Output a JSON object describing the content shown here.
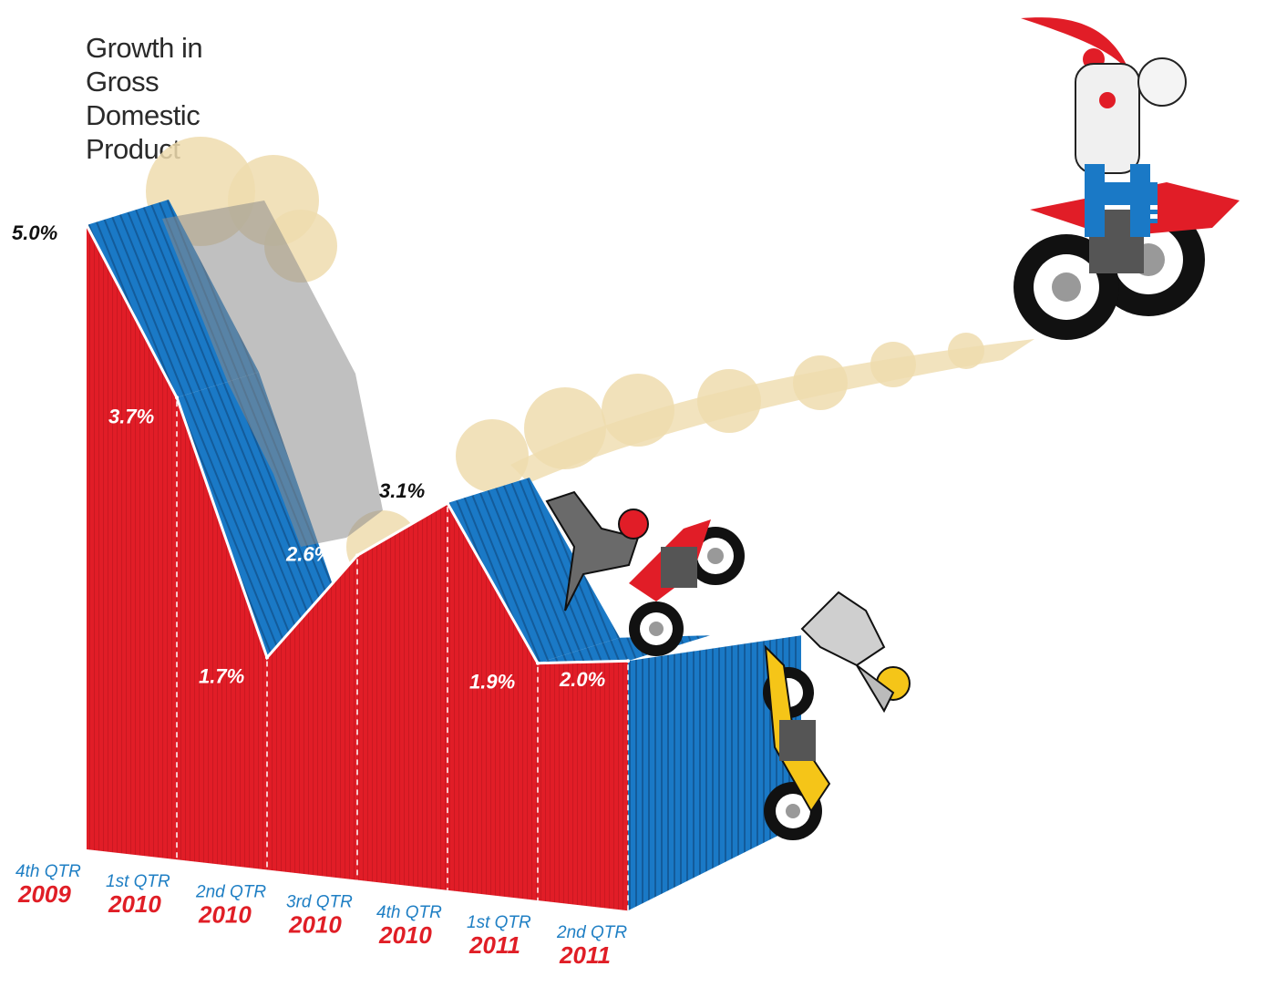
{
  "title_lines": [
    "Growth in",
    "Gross",
    "Domestic",
    "Product"
  ],
  "colors": {
    "front": "#e11d27",
    "top": "#1a79c6",
    "quarter_text": "#1f7fc4",
    "year_text": "#e01e26",
    "dust": "#efdcae",
    "smoke": "#8d8d8d"
  },
  "chart_data": {
    "type": "area",
    "title": "Growth in Gross Domestic Product",
    "categories": [
      "4th QTR 2009",
      "1st QTR 2010",
      "2nd QTR 2010",
      "3rd QTR 2010",
      "4th QTR 2010",
      "1st QTR 2011",
      "2nd QTR 2011"
    ],
    "values": [
      5.0,
      3.7,
      1.7,
      2.6,
      3.1,
      1.9,
      2.0
    ],
    "value_labels": [
      "5.0%",
      "3.7%",
      "1.7%",
      "2.6%",
      "3.1%",
      "1.9%",
      "2.0%"
    ],
    "quarter_labels": [
      "4th QTR",
      "1st QTR",
      "2nd QTR",
      "3rd QTR",
      "4th QTR",
      "1st QTR",
      "2nd QTR"
    ],
    "year_labels": [
      "2009",
      "2010",
      "2010",
      "2010",
      "2010",
      "2011",
      "2011"
    ],
    "ylim": [
      0,
      5.0
    ],
    "grid": false,
    "legend": "none"
  },
  "illustrations": {
    "leader_rider": "flag-rider-icon",
    "fallen_rider_1": "falling-rider-red-icon",
    "fallen_rider_2": "falling-rider-yellow-icon"
  }
}
